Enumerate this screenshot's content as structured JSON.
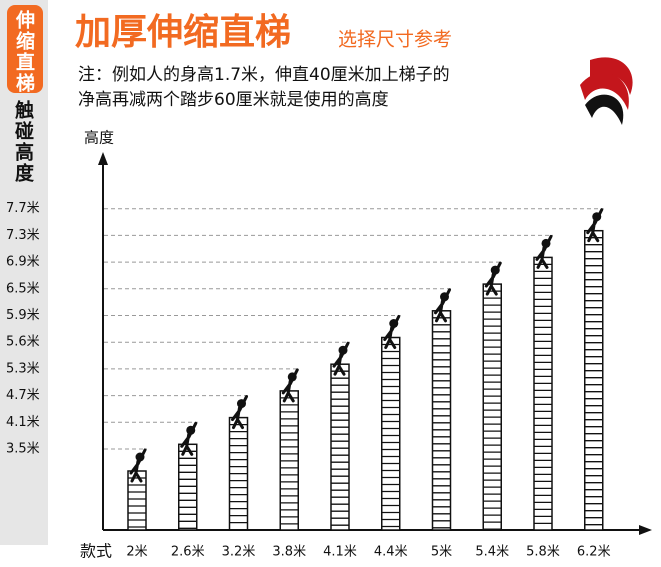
{
  "sidebar": {
    "badge": "伸缩直梯",
    "label": "触碰高度"
  },
  "chart_data": {
    "type": "bar",
    "title": "加厚伸缩直梯",
    "subtitle": "选择尺寸参考",
    "annotations": [
      "注：例如人的身高1.7米，伸直40厘米加上梯子的",
      "净高再减两个踏步60厘米就是使用的高度"
    ],
    "y_label": "高度",
    "x_label": "款式",
    "categories": [
      "2米",
      "2.6米",
      "3.2米",
      "3.8米",
      "4.1米",
      "4.4米",
      "5米",
      "5.4米",
      "5.8米",
      "6.2米"
    ],
    "values": [
      3.5,
      4.1,
      4.7,
      5.3,
      5.6,
      5.9,
      6.5,
      6.9,
      7.3,
      7.7
    ],
    "color": "#111111",
    "yticks": [
      {
        "value": 3.5,
        "label": "3.5米"
      },
      {
        "value": 4.1,
        "label": "4.1米"
      },
      {
        "value": 4.7,
        "label": "4.7米"
      },
      {
        "value": 5.3,
        "label": "5.3米"
      },
      {
        "value": 5.6,
        "label": "5.6米"
      },
      {
        "value": 5.9,
        "label": "5.9米"
      },
      {
        "value": 6.5,
        "label": "6.5米"
      },
      {
        "value": 6.9,
        "label": "6.9米"
      },
      {
        "value": 7.3,
        "label": "7.3米"
      },
      {
        "value": 7.7,
        "label": "7.7米"
      }
    ],
    "grid": true
  }
}
